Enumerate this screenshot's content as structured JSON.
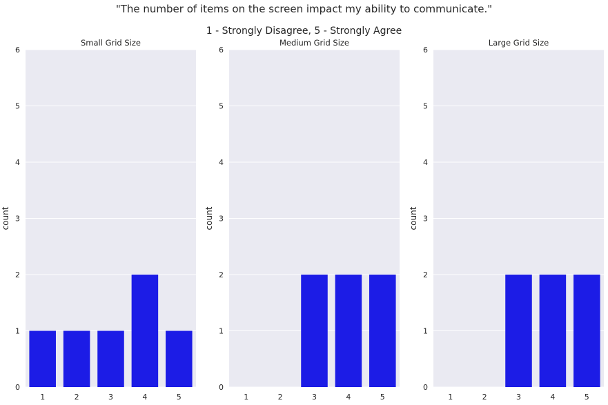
{
  "title": "\"The number of items on the screen impact my ability to communicate.\"",
  "subtitle": "1 - Strongly Disagree, 5 - Strongly Agree",
  "colors": {
    "bar": "#1c1ce6",
    "plot_bg": "#eaeaf2",
    "grid": "#ffffff"
  },
  "chart_data": [
    {
      "type": "bar",
      "title": "Small Grid Size",
      "categories": [
        "1",
        "2",
        "3",
        "4",
        "5"
      ],
      "values": [
        1,
        1,
        1,
        2,
        1
      ],
      "xlabel": "",
      "ylabel": "count",
      "ylim": [
        0,
        6
      ],
      "yticks": [
        "0",
        "1",
        "2",
        "3",
        "4",
        "5",
        "6"
      ],
      "grid": true
    },
    {
      "type": "bar",
      "title": "Medium Grid Size",
      "categories": [
        "1",
        "2",
        "3",
        "4",
        "5"
      ],
      "values": [
        0,
        0,
        2,
        2,
        2
      ],
      "xlabel": "",
      "ylabel": "count",
      "ylim": [
        0,
        6
      ],
      "yticks": [
        "0",
        "1",
        "2",
        "3",
        "4",
        "5",
        "6"
      ],
      "grid": true
    },
    {
      "type": "bar",
      "title": "Large Grid Size",
      "categories": [
        "1",
        "2",
        "3",
        "4",
        "5"
      ],
      "values": [
        0,
        0,
        2,
        2,
        2
      ],
      "xlabel": "",
      "ylabel": "count",
      "ylim": [
        0,
        6
      ],
      "yticks": [
        "0",
        "1",
        "2",
        "3",
        "4",
        "5",
        "6"
      ],
      "grid": true
    }
  ]
}
